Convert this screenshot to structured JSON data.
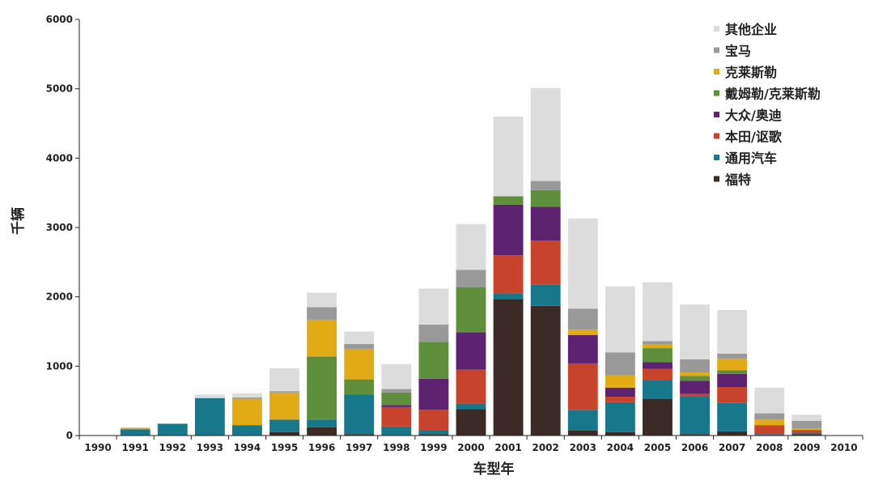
{
  "chart_data": {
    "type": "bar",
    "stacked": true,
    "xlabel": "车型年",
    "ylabel": "千辆",
    "ylim": [
      0,
      6000
    ],
    "yticks": [
      0,
      1000,
      2000,
      3000,
      4000,
      5000,
      6000
    ],
    "categories": [
      "1990",
      "1991",
      "1992",
      "1993",
      "1994",
      "1995",
      "1996",
      "1997",
      "1998",
      "1999",
      "2000",
      "2001",
      "2002",
      "2003",
      "2004",
      "2005",
      "2006",
      "2007",
      "2008",
      "2009",
      "2010"
    ],
    "legend_position": "top-right",
    "series": [
      {
        "name": "福特",
        "color": "#3b2a26",
        "values": [
          0,
          0,
          0,
          0,
          0,
          50,
          120,
          20,
          10,
          20,
          380,
          1970,
          1870,
          70,
          50,
          530,
          20,
          60,
          10,
          20,
          0
        ]
      },
      {
        "name": "通用汽车",
        "color": "#17788c",
        "values": [
          0,
          90,
          170,
          540,
          150,
          180,
          110,
          570,
          120,
          50,
          80,
          80,
          310,
          300,
          430,
          270,
          540,
          410,
          10,
          20,
          0
        ]
      },
      {
        "name": "本田/讴歌",
        "color": "#c8432b",
        "values": [
          0,
          0,
          0,
          0,
          0,
          0,
          0,
          0,
          280,
          300,
          490,
          550,
          630,
          670,
          80,
          160,
          40,
          230,
          130,
          40,
          0
        ]
      },
      {
        "name": "大众/奥迪",
        "color": "#5e2370",
        "values": [
          0,
          0,
          0,
          0,
          0,
          0,
          0,
          0,
          30,
          450,
          540,
          730,
          490,
          410,
          130,
          100,
          190,
          190,
          0,
          0,
          0
        ]
      },
      {
        "name": "戴姆勒/克莱斯勒",
        "color": "#5f8f3a",
        "values": [
          0,
          0,
          0,
          0,
          0,
          0,
          910,
          220,
          180,
          530,
          650,
          120,
          240,
          0,
          0,
          200,
          70,
          50,
          0,
          0,
          0
        ]
      },
      {
        "name": "克莱斯勒",
        "color": "#e2aa14",
        "values": [
          0,
          20,
          0,
          0,
          380,
          390,
          530,
          440,
          0,
          0,
          0,
          0,
          0,
          80,
          180,
          50,
          50,
          170,
          80,
          20,
          0
        ]
      },
      {
        "name": "宝马",
        "color": "#999999",
        "values": [
          0,
          0,
          0,
          0,
          20,
          20,
          180,
          70,
          50,
          250,
          250,
          0,
          130,
          300,
          330,
          50,
          190,
          70,
          90,
          110,
          0
        ]
      },
      {
        "name": "其他企业",
        "color": "#dcdcdc",
        "values": [
          0,
          10,
          0,
          50,
          60,
          330,
          210,
          180,
          360,
          520,
          660,
          1150,
          1340,
          1300,
          950,
          850,
          790,
          630,
          370,
          90,
          0
        ]
      }
    ]
  }
}
